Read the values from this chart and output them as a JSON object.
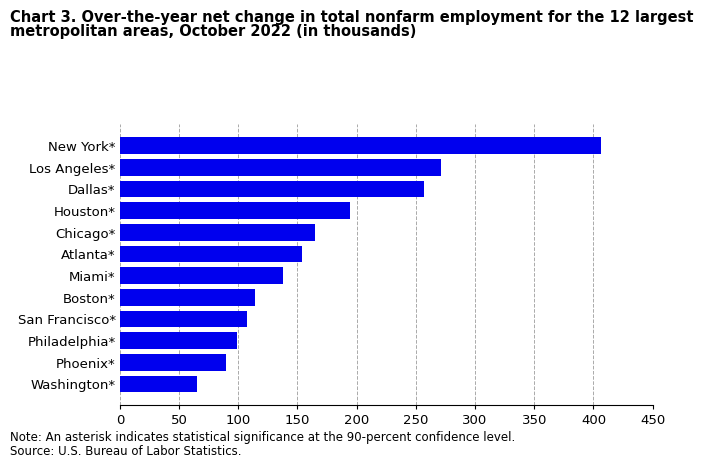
{
  "title_line1": "Chart 3. Over-the-year net change in total nonfarm employment for the 12 largest",
  "title_line2": "metropolitan areas, October 2022 (in thousands)",
  "categories": [
    "Washington*",
    "Phoenix*",
    "Philadelphia*",
    "San Francisco*",
    "Boston*",
    "Miami*",
    "Atlanta*",
    "Chicago*",
    "Houston*",
    "Dallas*",
    "Los Angeles*",
    "New York*"
  ],
  "values": [
    65,
    90,
    99,
    107,
    114,
    138,
    154,
    165,
    194,
    257,
    271,
    406
  ],
  "bar_color": "#0000ee",
  "xlim": [
    0,
    450
  ],
  "xticks": [
    0,
    50,
    100,
    150,
    200,
    250,
    300,
    350,
    400,
    450
  ],
  "note": "Note: An asterisk indicates statistical significance at the 90-percent confidence level.",
  "source": "Source: U.S. Bureau of Labor Statistics.",
  "title_fontsize": 10.5,
  "tick_fontsize": 9.5,
  "note_fontsize": 8.5,
  "bar_height": 0.78,
  "grid_color": "#aaaaaa",
  "background_color": "#ffffff"
}
